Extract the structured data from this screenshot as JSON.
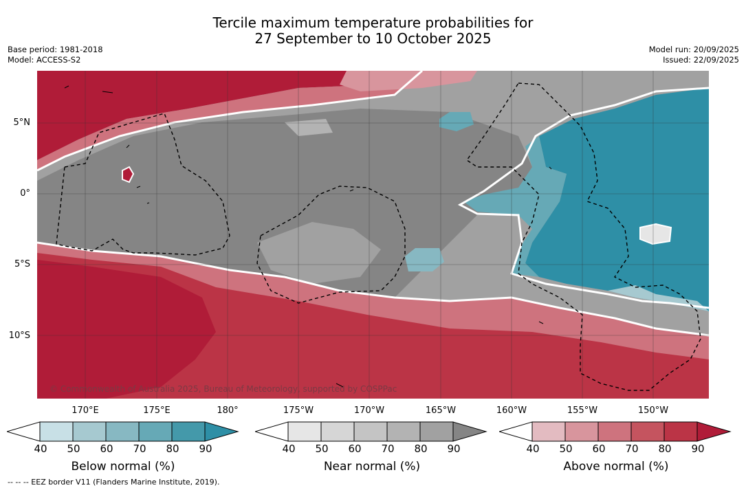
{
  "title_line1": "Tercile maximum temperature probabilities for",
  "title_line2": "27 September to 10 October 2025",
  "meta": {
    "base_period": "Base period: 1981-2018",
    "model": "Model: ACCESS-S2",
    "model_run": "Model run: 20/09/2025",
    "issued": "Issued: 22/09/2025"
  },
  "lat_ticks": [
    "5°N",
    "0°",
    "5°S",
    "10°S"
  ],
  "lon_ticks": [
    "170°E",
    "175°E",
    "180°",
    "175°W",
    "170°W",
    "165°W",
    "160°W",
    "155°W",
    "150°W"
  ],
  "copyright": "© Commonwealth of Australia 2025, Bureau of Meteorology, supported by COSPPac",
  "colorbars": {
    "below": {
      "label": "Below normal (%)",
      "ticks": [
        "40",
        "50",
        "60",
        "70",
        "80",
        "90"
      ],
      "colors": [
        "#ffffff",
        "#c8e0e6",
        "#a6c9d0",
        "#87b8c2",
        "#66a9b6",
        "#4499aa",
        "#2e8fa6"
      ]
    },
    "near": {
      "label": "Near normal (%)",
      "ticks": [
        "40",
        "50",
        "60",
        "70",
        "80",
        "90"
      ],
      "colors": [
        "#ffffff",
        "#e6e6e6",
        "#d6d6d6",
        "#c4c4c4",
        "#b3b3b3",
        "#a1a1a1",
        "#858585"
      ]
    },
    "above": {
      "label": "Above normal (%)",
      "ticks": [
        "40",
        "50",
        "60",
        "70",
        "80",
        "90"
      ],
      "colors": [
        "#ffffff",
        "#e3bbc1",
        "#d8959d",
        "#ce737e",
        "#c5545f",
        "#bb3446",
        "#b01c38"
      ]
    }
  },
  "footer": "--  --  -- EEZ border V11 (Flanders Marine Institute, 2019)."
}
